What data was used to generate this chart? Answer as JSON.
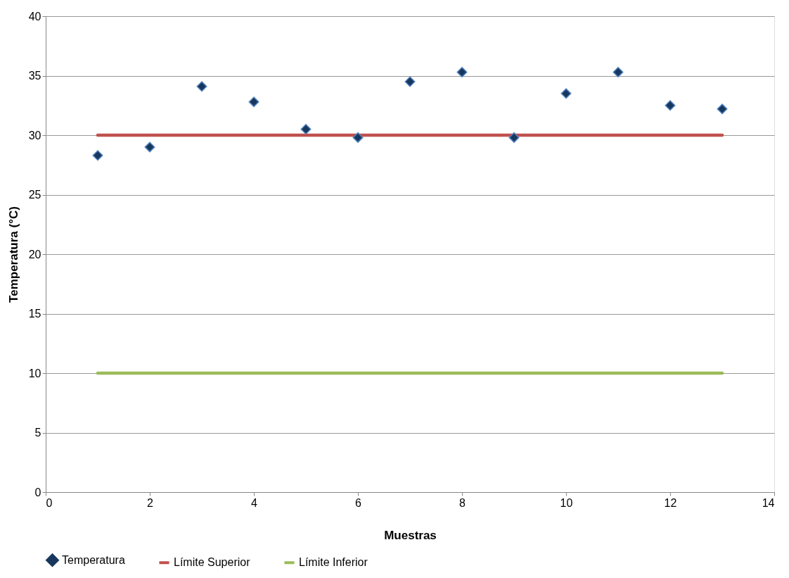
{
  "chart_data": {
    "type": "scatter",
    "xlabel": "Muestras",
    "ylabel": "Temperatura (°C)",
    "x": [
      1,
      2,
      3,
      4,
      5,
      6,
      7,
      8,
      9,
      10,
      11,
      12,
      13
    ],
    "series": [
      {
        "name": "Temperatura",
        "color": "#17375e",
        "marker": "diamond",
        "values": [
          28.3,
          29.0,
          34.1,
          32.8,
          30.5,
          29.8,
          34.5,
          35.3,
          29.8,
          33.5,
          35.3,
          32.5,
          32.2
        ]
      },
      {
        "name": "Límite Superior",
        "type": "line",
        "color": "#c0504d",
        "marker": "none",
        "values": [
          30,
          30,
          30,
          30,
          30,
          30,
          30,
          30,
          30,
          30,
          30,
          30,
          30
        ]
      },
      {
        "name": "Límite Inferior",
        "type": "line",
        "color": "#9bbb59",
        "marker": "none",
        "values": [
          10,
          10,
          10,
          10,
          10,
          10,
          10,
          10,
          10,
          10,
          10,
          10,
          10
        ]
      }
    ],
    "xlim": [
      0,
      14
    ],
    "xticks": [
      0,
      2,
      4,
      6,
      8,
      10,
      12,
      14
    ],
    "ylim": [
      0,
      40
    ],
    "yticks": [
      0,
      5,
      10,
      15,
      20,
      25,
      30,
      35,
      40
    ],
    "grid": "y",
    "legend": "bottom"
  }
}
